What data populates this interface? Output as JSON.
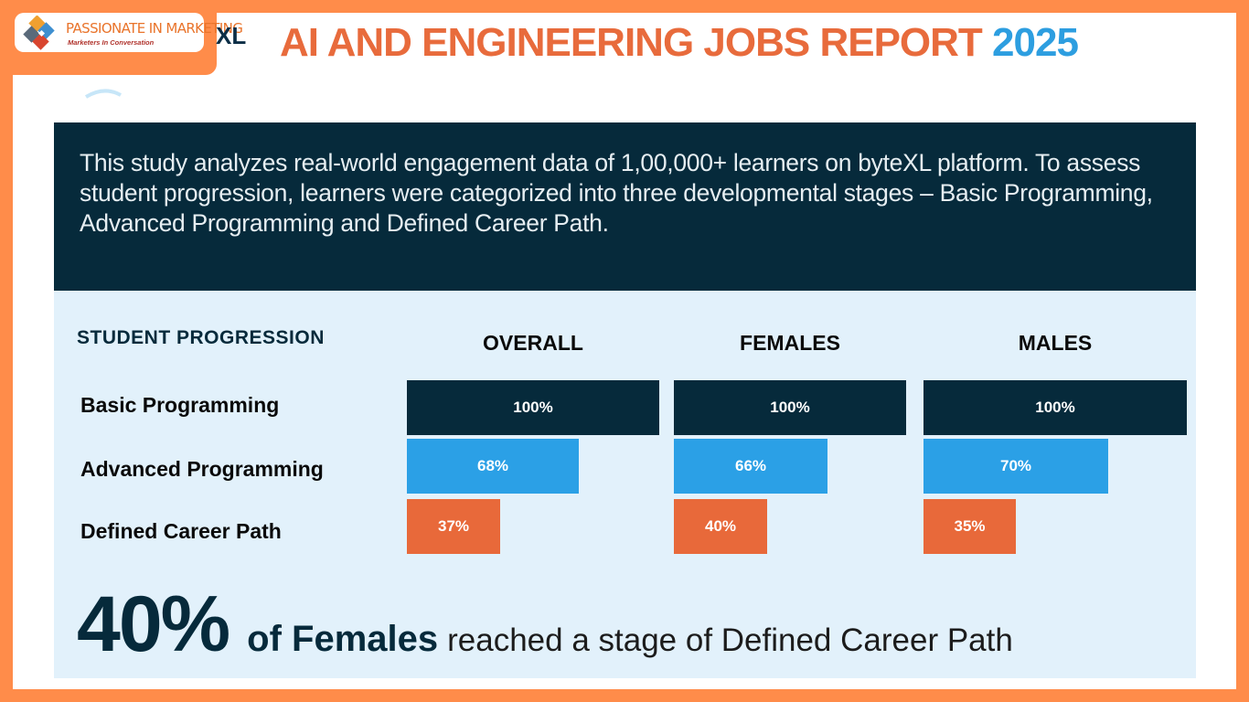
{
  "badge": {
    "name": "PASSIONATE IN MARKETING",
    "tagline": "Marketers In Conversation"
  },
  "brand_fragment": "XL",
  "title": {
    "main": "AI AND ENGINEERING JOBS REPORT",
    "year": "2025"
  },
  "intro": "This study analyzes real-world engagement data of 1,00,000+ learners on byteXL platform. To assess student progression, learners were categorized into three developmental stages – Basic Programming, Advanced Programming and Defined Career Path.",
  "colors": {
    "frame": "#ff8c4a",
    "title_orange": "#e86b3c",
    "title_blue": "#2d9ee0",
    "dark_navy": "#062a3b",
    "panel_bg": "#e2f1fb",
    "bar_basic": "#062a3b",
    "bar_advanced": "#2ba0e6",
    "bar_career": "#e8693a"
  },
  "chart_data": {
    "type": "bar",
    "orientation": "horizontal",
    "row_header": "STUDENT PROGRESSION",
    "categories": [
      "Basic Programming",
      "Advanced Programming",
      "Defined Career Path"
    ],
    "groups": [
      {
        "name": "OVERALL",
        "values": [
          100,
          68,
          37
        ],
        "labels": [
          "100%",
          "68%",
          "37%"
        ]
      },
      {
        "name": "FEMALES",
        "values": [
          100,
          66,
          40
        ],
        "labels": [
          "100%",
          "66%",
          "40%"
        ]
      },
      {
        "name": "MALES",
        "values": [
          100,
          70,
          35
        ],
        "labels": [
          "100%",
          "70%",
          "35%"
        ]
      }
    ],
    "xlim": [
      0,
      100
    ]
  },
  "highlight": {
    "big": "40%",
    "bold": "of Females",
    "rest": "reached a stage of Defined Career Path"
  }
}
